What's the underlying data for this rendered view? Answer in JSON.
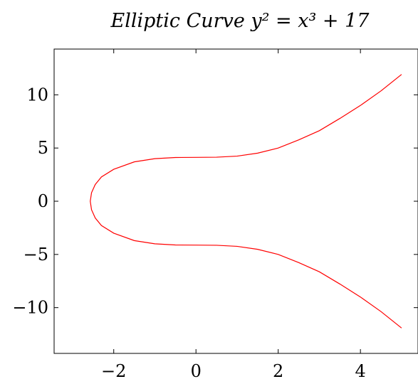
{
  "chart_data": {
    "type": "line",
    "title": "Elliptic Curve y² = x³ + 17",
    "xlabel": "",
    "ylabel": "",
    "xlim": [
      -3.45,
      5.4
    ],
    "ylim": [
      -14.3,
      14.3
    ],
    "x_ticks": [
      -2,
      0,
      2,
      4
    ],
    "x_tick_labels": [
      "−2",
      "0",
      "2",
      "4"
    ],
    "y_ticks": [
      -10,
      -5,
      0,
      5,
      10
    ],
    "y_tick_labels": [
      "−10",
      "−5",
      "0",
      "5",
      "10"
    ],
    "grid": false,
    "legend": "none",
    "series": [
      {
        "color": "#ff0000",
        "points": [
          [
            5.0,
            11.917
          ],
          [
            4.5,
            10.37
          ],
          [
            4.0,
            9.0
          ],
          [
            3.5,
            7.78
          ],
          [
            3.0,
            6.63
          ],
          [
            2.5,
            5.77
          ],
          [
            2.0,
            5.0
          ],
          [
            1.5,
            4.52
          ],
          [
            1.0,
            4.24
          ],
          [
            0.5,
            4.14
          ],
          [
            0.0,
            4.123
          ],
          [
            -0.5,
            4.108
          ],
          [
            -1.0,
            4.0
          ],
          [
            -1.5,
            3.7
          ],
          [
            -2.0,
            3.0
          ],
          [
            -2.3,
            2.28
          ],
          [
            -2.45,
            1.57
          ],
          [
            -2.54,
            0.8
          ],
          [
            -2.571,
            0.0
          ],
          [
            -2.54,
            -0.8
          ],
          [
            -2.45,
            -1.57
          ],
          [
            -2.3,
            -2.28
          ],
          [
            -2.0,
            -3.0
          ],
          [
            -1.5,
            -3.7
          ],
          [
            -1.0,
            -4.0
          ],
          [
            -0.5,
            -4.108
          ],
          [
            0.0,
            -4.123
          ],
          [
            0.5,
            -4.14
          ],
          [
            1.0,
            -4.24
          ],
          [
            1.5,
            -4.52
          ],
          [
            2.0,
            -5.0
          ],
          [
            2.5,
            -5.77
          ],
          [
            3.0,
            -6.63
          ],
          [
            3.5,
            -7.78
          ],
          [
            4.0,
            -9.0
          ],
          [
            4.5,
            -10.37
          ],
          [
            5.0,
            -11.917
          ]
        ]
      }
    ]
  }
}
